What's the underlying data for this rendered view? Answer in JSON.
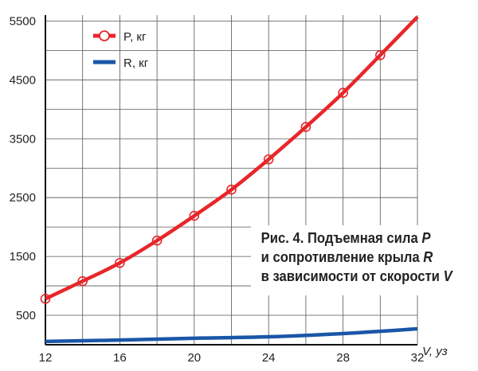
{
  "chart_data": {
    "type": "line",
    "title": "",
    "xlabel": "V, уз",
    "ylabel": "",
    "xlim": [
      12,
      32
    ],
    "ylim": [
      0,
      5600
    ],
    "x_ticks": [
      "12",
      "16",
      "20",
      "24",
      "28",
      "32"
    ],
    "y_ticks": [
      "5500",
      "4500",
      "3500",
      "2500",
      "1500",
      "500"
    ],
    "grid": true,
    "legend_position": "top-left",
    "series": [
      {
        "name": "P, кг",
        "color": "#e8262a",
        "marker": "circle",
        "x": [
          12,
          14,
          16,
          18,
          20,
          22,
          24,
          26,
          28,
          30,
          32
        ],
        "values": [
          780,
          1080,
          1390,
          1770,
          2190,
          2635,
          3150,
          3700,
          4280,
          4920,
          5570
        ],
        "markers_at": [
          12,
          14,
          16,
          18,
          20,
          22,
          24,
          26,
          28,
          30
        ]
      },
      {
        "name": "R, кг",
        "color": "#1a56a8",
        "marker": "none",
        "x": [
          12,
          16,
          20,
          24,
          28,
          32
        ],
        "values": [
          55,
          80,
          110,
          135,
          190,
          270
        ]
      }
    ],
    "caption": {
      "line1": "Рис. 4. Подъемная сила ",
      "line1_var": "P",
      "line2": "и сопротивление крыла ",
      "line2_var": "R",
      "line3": "в зависимости от скорости ",
      "line3_var": "V"
    }
  }
}
